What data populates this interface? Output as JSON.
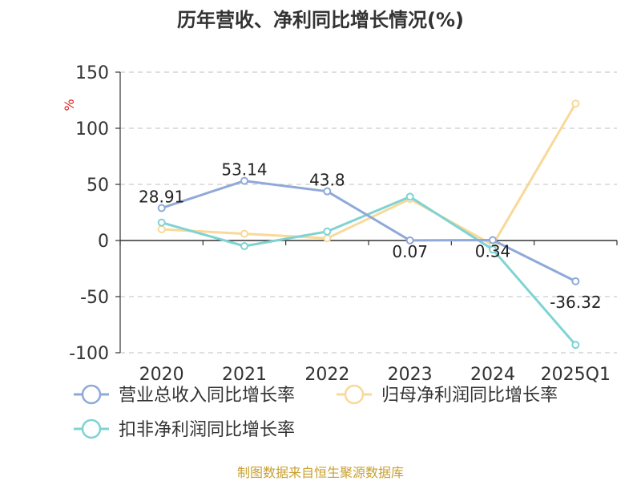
{
  "chart_data": {
    "type": "line",
    "title": "历年营收、净利同比增长情况(%)",
    "ylabel": "%",
    "categories": [
      "2020",
      "2021",
      "2022",
      "2023",
      "2024",
      "2025Q1"
    ],
    "ylim": [
      -100,
      150
    ],
    "yticks": [
      150,
      100,
      50,
      0,
      -50,
      -100
    ],
    "grid": true,
    "legend_position": "bottom",
    "series": [
      {
        "name": "营业总收入同比增长率",
        "color": "#8fa9d8",
        "values": [
          28.91,
          53.14,
          43.8,
          0.07,
          0.34,
          -36.32
        ],
        "labels": [
          "28.91",
          "53.14",
          "43.8",
          "0.07",
          "0.34",
          "-36.32"
        ]
      },
      {
        "name": "归母净利润同比增长率",
        "color": "#f8d999",
        "values": [
          10,
          6,
          2,
          37,
          -4,
          122
        ]
      },
      {
        "name": "扣非净利润同比增长率",
        "color": "#7fd3d3",
        "values": [
          16,
          -5,
          8,
          39,
          -8,
          -93
        ]
      }
    ]
  },
  "source": "制图数据来自恒生聚源数据库"
}
